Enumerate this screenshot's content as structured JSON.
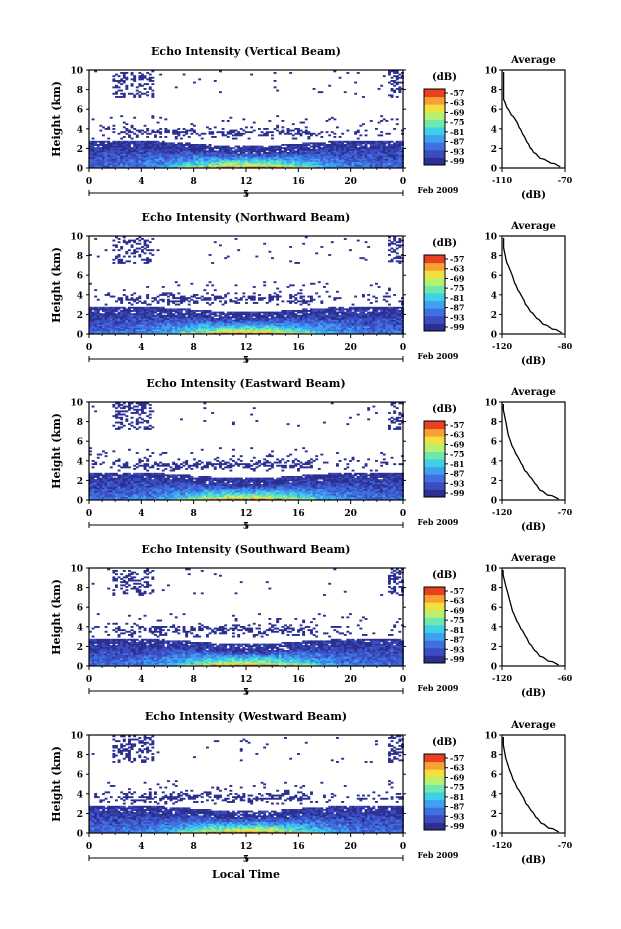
{
  "figure": {
    "x_axis_title": "Local Time",
    "date_day_label": "5",
    "date_label": "Feb 2009",
    "colorbar_unit": "(dB)",
    "colorbar_ticks": [
      "-57",
      "-63",
      "-69",
      "-75",
      "-81",
      "-87",
      "-93",
      "-99"
    ],
    "avg_title": "Average",
    "avg_xlabel": "(dB)",
    "height_label": "Height (km)",
    "x_ticks": [
      "0",
      "4",
      "8",
      "12",
      "16",
      "20",
      "0"
    ],
    "y_ticks": [
      "0",
      "2",
      "4",
      "6",
      "8",
      "10"
    ],
    "colors": {
      "palette": [
        "#2b2f8f",
        "#3a4cc0",
        "#3f6fe0",
        "#3fa0f0",
        "#3fd0e8",
        "#6fe8b0",
        "#b8f070",
        "#f0e040",
        "#f8a030",
        "#e84020"
      ]
    }
  },
  "chart_data": [
    {
      "type": "heatmap",
      "title": "Echo Intensity (Vertical Beam)",
      "xlabel": "",
      "ylabel": "Height (km)",
      "xlim": [
        0,
        24
      ],
      "ylim": [
        0,
        10
      ],
      "colorbar_range_db": [
        -99,
        -57
      ],
      "avg_profile": {
        "xlim": [
          -110,
          -70
        ],
        "xticks": [
          "-110",
          "-70"
        ],
        "x": [
          -109,
          -107,
          -104,
          -101,
          -99,
          -97,
          -94,
          -92,
          -90,
          -86,
          -79,
          -73
        ],
        "y": [
          7.0,
          6.2,
          5.4,
          4.8,
          4.1,
          3.5,
          2.6,
          2.0,
          1.6,
          1.0,
          0.5,
          0.1
        ]
      }
    },
    {
      "type": "heatmap",
      "title": "Echo Intensity (Northward Beam)",
      "xlabel": "",
      "ylabel": "Height (km)",
      "xlim": [
        0,
        24
      ],
      "ylim": [
        0,
        10
      ],
      "colorbar_range_db": [
        -99,
        -57
      ],
      "avg_profile": {
        "xlim": [
          -120,
          -80
        ],
        "xticks": [
          "-120",
          "-80"
        ],
        "x": [
          -119,
          -117,
          -114,
          -112,
          -110,
          -107,
          -105,
          -102,
          -98,
          -94,
          -88,
          -82
        ],
        "y": [
          8.8,
          7.3,
          6.2,
          5.2,
          4.5,
          3.7,
          3.0,
          2.3,
          1.6,
          1.0,
          0.5,
          0.1
        ]
      }
    },
    {
      "type": "heatmap",
      "title": "Echo Intensity (Eastward Beam)",
      "xlabel": "",
      "ylabel": "Height (km)",
      "xlim": [
        0,
        24
      ],
      "ylim": [
        0,
        10
      ],
      "colorbar_range_db": [
        -99,
        -57
      ],
      "avg_profile": {
        "xlim": [
          -120,
          -70
        ],
        "xticks": [
          "-120",
          "-70"
        ],
        "x": [
          -119,
          -117,
          -115,
          -112,
          -109,
          -105,
          -102,
          -98,
          -94,
          -90,
          -84,
          -75
        ],
        "y": [
          9.2,
          8.0,
          6.6,
          5.5,
          4.7,
          3.8,
          3.0,
          2.4,
          1.7,
          1.0,
          0.5,
          0.1
        ]
      }
    },
    {
      "type": "heatmap",
      "title": "Echo Intensity (Southward Beam)",
      "xlabel": "",
      "ylabel": "Height (km)",
      "xlim": [
        0,
        24
      ],
      "ylim": [
        0,
        10
      ],
      "colorbar_range_db": [
        -99,
        -57
      ],
      "avg_profile": {
        "xlim": [
          -120,
          -60
        ],
        "xticks": [
          "-120",
          "-60"
        ],
        "x": [
          -119,
          -116,
          -113,
          -110,
          -106,
          -102,
          -98,
          -94,
          -89,
          -84,
          -76,
          -66
        ],
        "y": [
          9.3,
          8.0,
          6.8,
          5.6,
          4.6,
          3.8,
          3.1,
          2.3,
          1.6,
          1.0,
          0.5,
          0.1
        ]
      }
    },
    {
      "type": "heatmap",
      "title": "Echo Intensity (Westward Beam)",
      "xlabel": "Local Time",
      "ylabel": "Height (km)",
      "xlim": [
        0,
        24
      ],
      "ylim": [
        0,
        10
      ],
      "colorbar_range_db": [
        -99,
        -57
      ],
      "avg_profile": {
        "xlim": [
          -120,
          -70
        ],
        "xticks": [
          "-120",
          "-70"
        ],
        "x": [
          -119,
          -117,
          -114,
          -111,
          -108,
          -104,
          -101,
          -97,
          -93,
          -89,
          -83,
          -75
        ],
        "y": [
          9.0,
          7.6,
          6.4,
          5.4,
          4.6,
          3.8,
          3.0,
          2.3,
          1.6,
          1.0,
          0.5,
          0.1
        ]
      }
    }
  ]
}
